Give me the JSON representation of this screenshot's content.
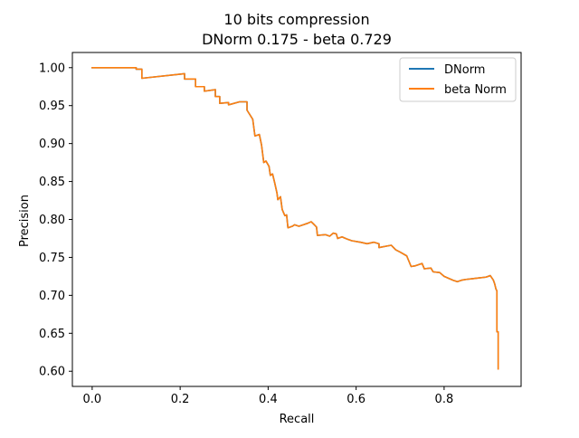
{
  "chart_data": {
    "type": "line",
    "title_line1": "10 bits compression",
    "title_line2": "DNorm 0.175 - beta 0.729",
    "xlabel": "Recall",
    "ylabel": "Precision",
    "xlim": [
      -0.045,
      0.975
    ],
    "ylim": [
      0.58,
      1.02
    ],
    "x_ticks": [
      0.0,
      0.2,
      0.4,
      0.6,
      0.8
    ],
    "x_tick_labels": [
      "0.0",
      "0.2",
      "0.4",
      "0.6",
      "0.8"
    ],
    "y_ticks": [
      0.6,
      0.65,
      0.7,
      0.75,
      0.8,
      0.85,
      0.9,
      0.95,
      1.0
    ],
    "y_tick_labels": [
      "0.60",
      "0.65",
      "0.70",
      "0.75",
      "0.80",
      "0.85",
      "0.90",
      "0.95",
      "1.00"
    ],
    "grid": false,
    "legend_position": "top-right",
    "series": [
      {
        "name": "DNorm",
        "color": "#1f77b4",
        "points": [
          [
            0.0,
            1.0
          ],
          [
            0.1,
            1.0
          ],
          [
            0.1,
            0.998
          ],
          [
            0.113,
            0.998
          ],
          [
            0.113,
            0.986
          ],
          [
            0.21,
            0.992
          ],
          [
            0.21,
            0.985
          ],
          [
            0.235,
            0.985
          ],
          [
            0.235,
            0.975
          ],
          [
            0.255,
            0.975
          ],
          [
            0.255,
            0.969
          ],
          [
            0.28,
            0.971
          ],
          [
            0.28,
            0.962
          ],
          [
            0.29,
            0.962
          ],
          [
            0.29,
            0.953
          ],
          [
            0.31,
            0.954
          ],
          [
            0.31,
            0.951
          ],
          [
            0.335,
            0.955
          ],
          [
            0.352,
            0.955
          ],
          [
            0.352,
            0.944
          ],
          [
            0.365,
            0.932
          ],
          [
            0.37,
            0.91
          ],
          [
            0.38,
            0.912
          ],
          [
            0.385,
            0.898
          ],
          [
            0.39,
            0.875
          ],
          [
            0.395,
            0.877
          ],
          [
            0.402,
            0.87
          ],
          [
            0.405,
            0.858
          ],
          [
            0.41,
            0.86
          ],
          [
            0.415,
            0.848
          ],
          [
            0.42,
            0.835
          ],
          [
            0.422,
            0.826
          ],
          [
            0.428,
            0.83
          ],
          [
            0.432,
            0.813
          ],
          [
            0.438,
            0.805
          ],
          [
            0.442,
            0.806
          ],
          [
            0.445,
            0.789
          ],
          [
            0.455,
            0.791
          ],
          [
            0.46,
            0.793
          ],
          [
            0.47,
            0.791
          ],
          [
            0.48,
            0.793
          ],
          [
            0.49,
            0.795
          ],
          [
            0.498,
            0.797
          ],
          [
            0.505,
            0.793
          ],
          [
            0.51,
            0.79
          ],
          [
            0.512,
            0.779
          ],
          [
            0.53,
            0.78
          ],
          [
            0.54,
            0.778
          ],
          [
            0.548,
            0.782
          ],
          [
            0.555,
            0.781
          ],
          [
            0.558,
            0.775
          ],
          [
            0.568,
            0.777
          ],
          [
            0.58,
            0.774
          ],
          [
            0.59,
            0.772
          ],
          [
            0.61,
            0.77
          ],
          [
            0.625,
            0.768
          ],
          [
            0.64,
            0.77
          ],
          [
            0.652,
            0.768
          ],
          [
            0.652,
            0.763
          ],
          [
            0.67,
            0.765
          ],
          [
            0.68,
            0.766
          ],
          [
            0.69,
            0.76
          ],
          [
            0.7,
            0.757
          ],
          [
            0.715,
            0.752
          ],
          [
            0.72,
            0.745
          ],
          [
            0.725,
            0.738
          ],
          [
            0.735,
            0.739
          ],
          [
            0.75,
            0.742
          ],
          [
            0.755,
            0.735
          ],
          [
            0.77,
            0.736
          ],
          [
            0.775,
            0.731
          ],
          [
            0.79,
            0.73
          ],
          [
            0.8,
            0.725
          ],
          [
            0.82,
            0.72
          ],
          [
            0.83,
            0.718
          ],
          [
            0.84,
            0.72
          ],
          [
            0.85,
            0.721
          ],
          [
            0.865,
            0.722
          ],
          [
            0.88,
            0.723
          ],
          [
            0.895,
            0.724
          ],
          [
            0.905,
            0.726
          ],
          [
            0.912,
            0.72
          ],
          [
            0.915,
            0.715
          ],
          [
            0.918,
            0.708
          ],
          [
            0.92,
            0.706
          ],
          [
            0.92,
            0.652
          ],
          [
            0.923,
            0.652
          ],
          [
            0.923,
            0.603
          ]
        ]
      },
      {
        "name": "beta Norm",
        "color": "#ff7f0e",
        "points": [
          [
            0.0,
            1.0
          ],
          [
            0.1,
            1.0
          ],
          [
            0.1,
            0.998
          ],
          [
            0.113,
            0.998
          ],
          [
            0.113,
            0.986
          ],
          [
            0.21,
            0.992
          ],
          [
            0.21,
            0.985
          ],
          [
            0.235,
            0.985
          ],
          [
            0.235,
            0.975
          ],
          [
            0.255,
            0.975
          ],
          [
            0.255,
            0.969
          ],
          [
            0.28,
            0.971
          ],
          [
            0.28,
            0.962
          ],
          [
            0.29,
            0.962
          ],
          [
            0.29,
            0.953
          ],
          [
            0.31,
            0.954
          ],
          [
            0.31,
            0.951
          ],
          [
            0.335,
            0.955
          ],
          [
            0.352,
            0.955
          ],
          [
            0.352,
            0.944
          ],
          [
            0.365,
            0.932
          ],
          [
            0.37,
            0.91
          ],
          [
            0.38,
            0.912
          ],
          [
            0.385,
            0.898
          ],
          [
            0.39,
            0.875
          ],
          [
            0.395,
            0.877
          ],
          [
            0.402,
            0.87
          ],
          [
            0.405,
            0.858
          ],
          [
            0.41,
            0.86
          ],
          [
            0.415,
            0.848
          ],
          [
            0.42,
            0.835
          ],
          [
            0.422,
            0.826
          ],
          [
            0.428,
            0.83
          ],
          [
            0.432,
            0.813
          ],
          [
            0.438,
            0.805
          ],
          [
            0.442,
            0.806
          ],
          [
            0.445,
            0.789
          ],
          [
            0.455,
            0.791
          ],
          [
            0.46,
            0.793
          ],
          [
            0.47,
            0.791
          ],
          [
            0.48,
            0.793
          ],
          [
            0.49,
            0.795
          ],
          [
            0.498,
            0.797
          ],
          [
            0.505,
            0.793
          ],
          [
            0.51,
            0.79
          ],
          [
            0.512,
            0.779
          ],
          [
            0.53,
            0.78
          ],
          [
            0.54,
            0.778
          ],
          [
            0.548,
            0.782
          ],
          [
            0.555,
            0.781
          ],
          [
            0.558,
            0.775
          ],
          [
            0.568,
            0.777
          ],
          [
            0.58,
            0.774
          ],
          [
            0.59,
            0.772
          ],
          [
            0.61,
            0.77
          ],
          [
            0.625,
            0.768
          ],
          [
            0.64,
            0.77
          ],
          [
            0.652,
            0.768
          ],
          [
            0.652,
            0.763
          ],
          [
            0.67,
            0.765
          ],
          [
            0.68,
            0.766
          ],
          [
            0.69,
            0.76
          ],
          [
            0.7,
            0.757
          ],
          [
            0.715,
            0.752
          ],
          [
            0.72,
            0.745
          ],
          [
            0.725,
            0.738
          ],
          [
            0.735,
            0.739
          ],
          [
            0.75,
            0.742
          ],
          [
            0.755,
            0.735
          ],
          [
            0.77,
            0.736
          ],
          [
            0.775,
            0.731
          ],
          [
            0.79,
            0.73
          ],
          [
            0.8,
            0.725
          ],
          [
            0.82,
            0.72
          ],
          [
            0.83,
            0.718
          ],
          [
            0.84,
            0.72
          ],
          [
            0.85,
            0.721
          ],
          [
            0.865,
            0.722
          ],
          [
            0.88,
            0.723
          ],
          [
            0.895,
            0.724
          ],
          [
            0.905,
            0.726
          ],
          [
            0.912,
            0.72
          ],
          [
            0.915,
            0.715
          ],
          [
            0.918,
            0.708
          ],
          [
            0.92,
            0.706
          ],
          [
            0.92,
            0.652
          ],
          [
            0.923,
            0.652
          ],
          [
            0.923,
            0.603
          ]
        ]
      }
    ]
  }
}
